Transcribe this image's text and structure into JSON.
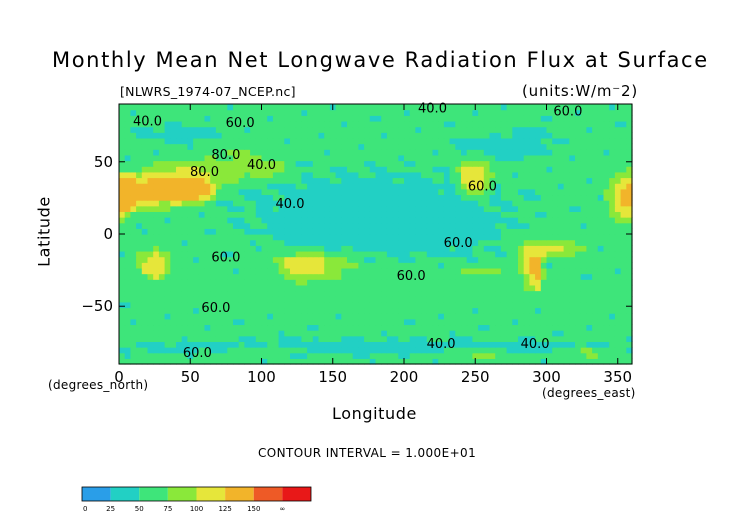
{
  "chart_data": {
    "type": "heatmap",
    "title": "Monthly Mean Net Longwave Radiation Flux at Surface",
    "subtitle_left": "[NLWRS_1974-07_NCEP.nc]",
    "subtitle_right": "(units:W/m⁻2)",
    "xlabel": "Longitude",
    "ylabel": "Latitude",
    "x_units_left": "(degrees_north)",
    "x_units_right": "(degrees_east)",
    "xlim": [
      0,
      360
    ],
    "ylim": [
      -90,
      90
    ],
    "x_ticks": [
      0,
      50,
      100,
      150,
      200,
      250,
      300,
      350
    ],
    "y_ticks": [
      -50,
      0,
      50
    ],
    "x_tick_labels": [
      "0",
      "50",
      "100",
      "150",
      "200",
      "250",
      "300",
      "350"
    ],
    "y_tick_labels": [
      "−50",
      "0",
      "50"
    ],
    "contour_interval_text": "CONTOUR INTERVAL = 1.000E+01",
    "contour_labels": [
      {
        "text": "40.0",
        "x": 20,
        "y": 75
      },
      {
        "text": "60.0",
        "x": 85,
        "y": 74
      },
      {
        "text": "40.0",
        "x": 220,
        "y": 84
      },
      {
        "text": "60.0",
        "x": 315,
        "y": 82
      },
      {
        "text": "80.0",
        "x": 75,
        "y": 52
      },
      {
        "text": "40.0",
        "x": 100,
        "y": 45
      },
      {
        "text": "80.0",
        "x": 60,
        "y": 40
      },
      {
        "text": "40.0",
        "x": 120,
        "y": 18
      },
      {
        "text": "60.0",
        "x": 255,
        "y": 30
      },
      {
        "text": "60.0",
        "x": 238,
        "y": -9
      },
      {
        "text": "60.0",
        "x": 75,
        "y": -19
      },
      {
        "text": "60.0",
        "x": 205,
        "y": -32
      },
      {
        "text": "60.0",
        "x": 68,
        "y": -54
      },
      {
        "text": "40.0",
        "x": 226,
        "y": -79
      },
      {
        "text": "40.0",
        "x": 292,
        "y": -79
      },
      {
        "text": "60.0",
        "x": 55,
        "y": -85
      }
    ],
    "levels": [
      0,
      25,
      50,
      75,
      100,
      125,
      150
    ],
    "colorbar_labels": [
      "0",
      "25",
      "50",
      "75",
      "100",
      "125",
      "150",
      "∞"
    ],
    "colors": [
      "#2a9ee8",
      "#22d0c4",
      "#3ee57a",
      "#8ae83a",
      "#e6e63a",
      "#f2b42a",
      "#ee5a26",
      "#e81818"
    ],
    "field_regions": [
      {
        "lon": 0,
        "lat": 75,
        "rlon": 360,
        "rlat": 12,
        "value": 55
      },
      {
        "lon": 40,
        "lat": 70,
        "rlon": 30,
        "rlat": 6,
        "value": 30
      },
      {
        "lon": 290,
        "lat": 70,
        "rlon": 12,
        "rlat": 6,
        "value": 15
      },
      {
        "lon": 270,
        "lat": 60,
        "rlon": 40,
        "rlat": 8,
        "value": 30
      },
      {
        "lon": 45,
        "lat": 38,
        "rlon": 40,
        "rlat": 16,
        "value": 120
      },
      {
        "lon": 20,
        "lat": 28,
        "rlon": 25,
        "rlat": 14,
        "value": 140
      },
      {
        "lon": 50,
        "lat": 30,
        "rlon": 18,
        "rlat": 10,
        "value": 150
      },
      {
        "lon": 100,
        "lat": 45,
        "rlon": 25,
        "rlat": 10,
        "value": 95
      },
      {
        "lon": 80,
        "lat": 55,
        "rlon": 20,
        "rlat": 8,
        "value": 80
      },
      {
        "lon": 250,
        "lat": 40,
        "rlon": 15,
        "rlat": 16,
        "value": 120
      },
      {
        "lon": 248,
        "lat": 38,
        "rlon": 8,
        "rlat": 9,
        "value": 145
      },
      {
        "lon": 355,
        "lat": 25,
        "rlon": 15,
        "rlat": 22,
        "value": 130
      },
      {
        "lon": 5,
        "lat": 28,
        "rlon": 8,
        "rlat": 15,
        "value": 150
      },
      {
        "lon": 180,
        "lat": 20,
        "rlon": 110,
        "rlat": 30,
        "value": 40
      },
      {
        "lon": 210,
        "lat": 0,
        "rlon": 70,
        "rlat": 20,
        "value": 42
      },
      {
        "lon": 140,
        "lat": 5,
        "rlon": 40,
        "rlat": 15,
        "value": 40
      },
      {
        "lon": 25,
        "lat": -20,
        "rlon": 15,
        "rlat": 15,
        "value": 110
      },
      {
        "lon": 25,
        "lat": -22,
        "rlon": 7,
        "rlat": 8,
        "value": 130
      },
      {
        "lon": 135,
        "lat": -22,
        "rlon": 35,
        "rlat": 12,
        "value": 105
      },
      {
        "lon": 130,
        "lat": -20,
        "rlon": 15,
        "rlat": 6,
        "value": 125
      },
      {
        "lon": 290,
        "lat": -22,
        "rlon": 10,
        "rlat": 20,
        "value": 125
      },
      {
        "lon": 293,
        "lat": -25,
        "rlon": 4,
        "rlat": 12,
        "value": 150
      },
      {
        "lon": 305,
        "lat": -10,
        "rlon": 25,
        "rlat": 8,
        "value": 110
      },
      {
        "lon": 255,
        "lat": -25,
        "rlon": 25,
        "rlat": 6,
        "value": 85
      },
      {
        "lon": 180,
        "lat": -40,
        "rlon": 200,
        "rlat": 12,
        "value": 65
      },
      {
        "lon": 180,
        "lat": -78,
        "rlon": 200,
        "rlat": 6,
        "value": 35
      },
      {
        "lon": 100,
        "lat": -80,
        "rlon": 30,
        "rlat": 4,
        "value": 90
      },
      {
        "lon": 250,
        "lat": -82,
        "rlon": 25,
        "rlat": 4,
        "value": 100
      },
      {
        "lon": 330,
        "lat": -82,
        "rlon": 25,
        "rlat": 4,
        "value": 90
      }
    ],
    "field_base_value": 55,
    "grid": false
  }
}
